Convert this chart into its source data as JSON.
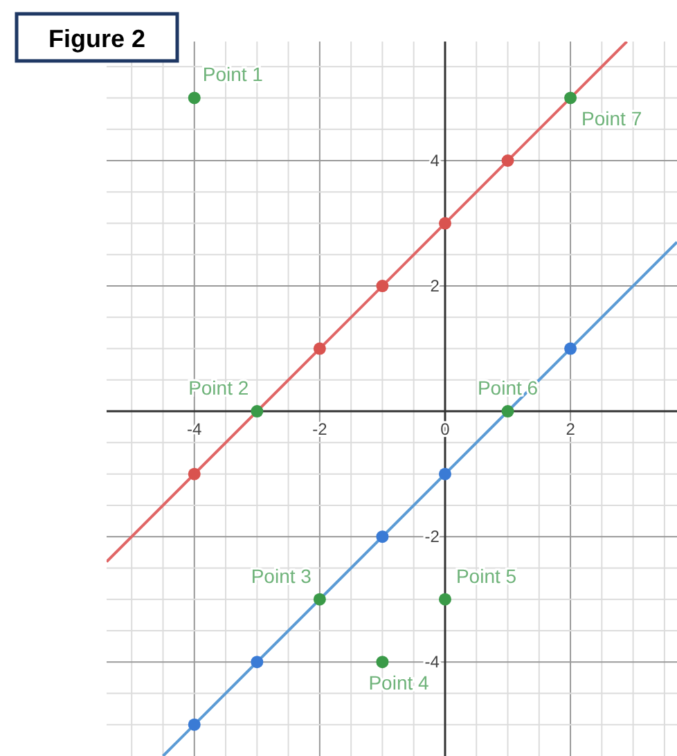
{
  "chart_data": {
    "type": "scatter",
    "title": "Figure 2",
    "xlim": [
      -5.4,
      3.7
    ],
    "ylim": [
      -5.5,
      5.9
    ],
    "xticks": [
      {
        "value": -5,
        "label": null
      },
      {
        "value": -4.5,
        "label": null
      },
      -4,
      {
        "value": -3.5,
        "label": null
      },
      {
        "value": -3,
        "label": null
      },
      {
        "value": -2.5,
        "label": null
      },
      -2,
      {
        "value": -1.5,
        "label": null
      },
      {
        "value": -1,
        "label": null
      },
      {
        "value": -0.5,
        "label": null
      },
      0,
      {
        "value": 0.5,
        "label": null
      },
      {
        "value": 1,
        "label": null
      },
      {
        "value": 1.5,
        "label": null
      },
      2,
      {
        "value": 2.5,
        "label": null
      },
      {
        "value": 3,
        "label": null
      },
      {
        "value": 3.5,
        "label": null
      }
    ],
    "yticks": [
      {
        "value": -5,
        "label": null
      },
      {
        "value": -4.5,
        "label": null
      },
      -4,
      {
        "value": -3.5,
        "label": null
      },
      {
        "value": -3,
        "label": null
      },
      {
        "value": -2.5,
        "label": null
      },
      -2,
      {
        "value": -1.5,
        "label": null
      },
      {
        "value": -1,
        "label": null
      },
      {
        "value": -0.5,
        "label": null
      },
      {
        "value": 0,
        "label": null
      },
      {
        "value": 0.5,
        "label": null
      },
      {
        "value": 1,
        "label": null
      },
      {
        "value": 1.5,
        "label": null
      },
      2,
      {
        "value": 2.5,
        "label": null
      },
      {
        "value": 3,
        "label": null
      },
      {
        "value": 3.5,
        "label": null
      },
      4,
      {
        "value": 4.5,
        "label": null
      },
      {
        "value": 5,
        "label": null
      },
      {
        "value": 5.5,
        "label": null
      }
    ],
    "grid": true,
    "marker": "circle",
    "series": [
      {
        "type": "line",
        "color": "#e06666",
        "x": [
          -5.4,
          2.9
        ],
        "values": [
          -2.4,
          5.9
        ],
        "marker": "none"
      },
      {
        "type": "line",
        "color": "#5b9bd5",
        "x": [
          -4.5,
          3.7
        ],
        "values": [
          -5.5,
          2.7
        ],
        "marker": "none"
      },
      {
        "color": "#d9534f",
        "x": [
          -4,
          -2,
          -1,
          0,
          1
        ],
        "values": [
          -1,
          1,
          2,
          3,
          4
        ]
      },
      {
        "color": "#3a7bd5",
        "x": [
          -4,
          -3,
          -1,
          0,
          2
        ],
        "values": [
          -5,
          -4,
          -2,
          -1,
          1
        ]
      },
      {
        "color": "#3a9a48",
        "x": [
          -4,
          -3,
          -2,
          -1,
          0,
          1,
          2
        ],
        "values": [
          5,
          0,
          -3,
          -4,
          -3,
          0,
          5
        ]
      }
    ],
    "annotations": [
      {
        "text": "Point 1",
        "x": -4,
        "y": 5
      },
      {
        "text": "Point 2",
        "x": -3,
        "y": 0
      },
      {
        "text": "Point 3",
        "x": -2,
        "y": -3
      },
      {
        "text": "Point 4",
        "x": -1,
        "y": -4
      },
      {
        "text": "Point 5",
        "x": 0,
        "y": -3
      },
      {
        "text": "Point 6",
        "x": 1,
        "y": 0
      },
      {
        "text": "Point 7",
        "x": 2,
        "y": 5
      }
    ]
  }
}
